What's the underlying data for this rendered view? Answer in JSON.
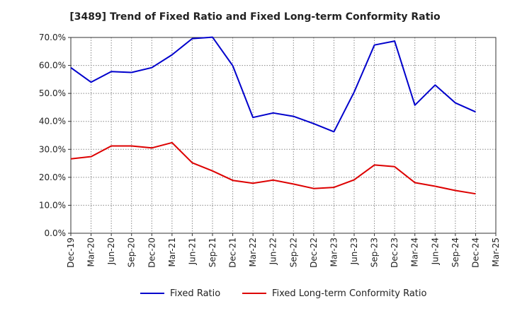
{
  "chart_data": {
    "type": "line",
    "title": "[3489]  Trend of Fixed Ratio and Fixed Long-term Conformity Ratio",
    "xlabel": "",
    "ylabel": "",
    "ylim": [
      0,
      70
    ],
    "y_ticks": [
      "0.0%",
      "10.0%",
      "20.0%",
      "30.0%",
      "40.0%",
      "50.0%",
      "60.0%",
      "70.0%"
    ],
    "x": [
      "Dec-19",
      "Mar-20",
      "Jun-20",
      "Sep-20",
      "Dec-20",
      "Mar-21",
      "Jun-21",
      "Sep-21",
      "Dec-21",
      "Mar-22",
      "Jun-22",
      "Sep-22",
      "Dec-22",
      "Mar-23",
      "Jun-23",
      "Sep-23",
      "Dec-23",
      "Mar-24",
      "Jun-24",
      "Sep-24",
      "Dec-24",
      "Mar-25"
    ],
    "grid": true,
    "legend_position": "bottom",
    "series": [
      {
        "name": "Fixed Ratio",
        "color": "#0000cc",
        "values": [
          59.2,
          54.0,
          57.8,
          57.5,
          59.2,
          63.8,
          69.6,
          70.1,
          59.9,
          41.4,
          43.0,
          41.8,
          39.2,
          36.3,
          50.5,
          67.3,
          68.7,
          45.8,
          53.0,
          46.6,
          43.4,
          null
        ]
      },
      {
        "name": "Fixed Long-term Conformity Ratio",
        "color": "#dd0000",
        "values": [
          26.6,
          27.4,
          31.2,
          31.2,
          30.5,
          32.4,
          25.2,
          22.3,
          18.9,
          17.9,
          19.0,
          17.6,
          16.0,
          16.4,
          19.1,
          24.4,
          23.8,
          18.1,
          16.8,
          15.3,
          14.1,
          null
        ]
      }
    ]
  }
}
